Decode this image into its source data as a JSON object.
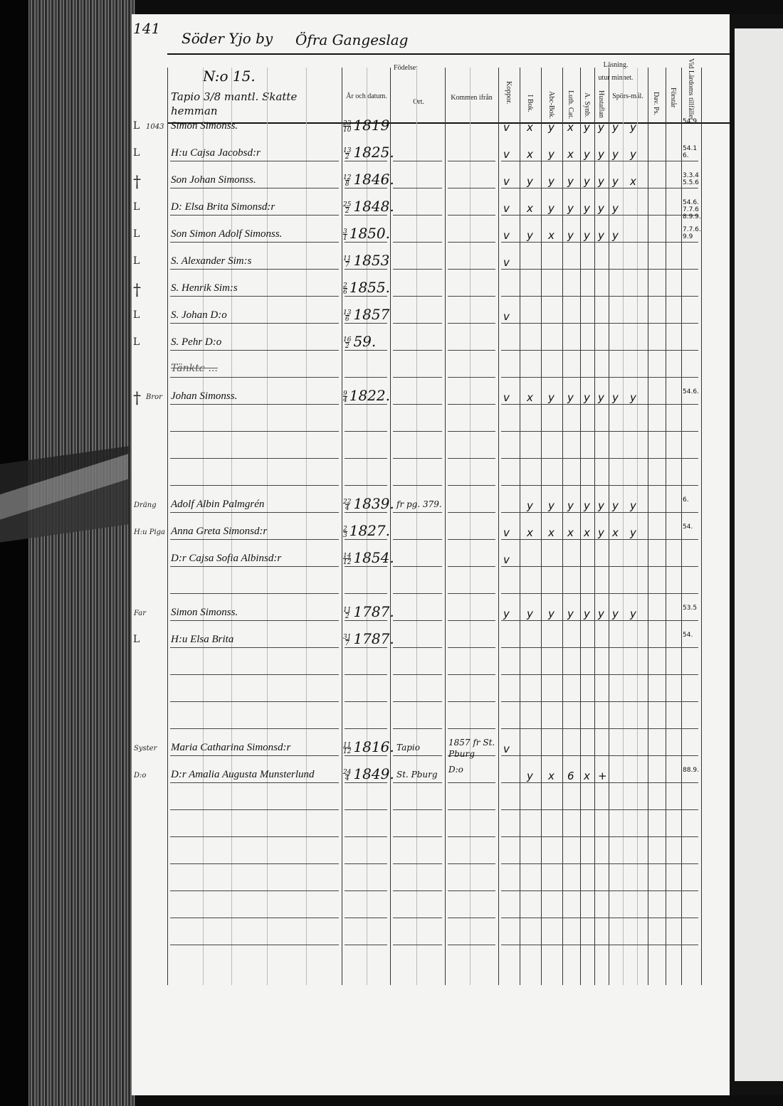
{
  "page": {
    "page_number": "141",
    "village": "Söder Yjo by",
    "parish_area": "Öfra Gangeslag",
    "household_number": "N:o 15.",
    "farm": "Tapio 3/8 mantl. Skatte hemman"
  },
  "columns": {
    "fodelse": "Födelse:",
    "ar_datum": "År och datum.",
    "ort": "Ort.",
    "kommen": "Kommen ifrån",
    "kopparr": "Koppor.",
    "lasning": "Läsning.",
    "utur_minnet": "utur minnet.",
    "i_bok": "I Bok.",
    "abc_bok": "Abc-Bok.",
    "luth_cat": "Luth. Cat.",
    "a_synb": "A. Synb.",
    "hustaflan": "Hustaflan",
    "sporsmal": "Spörs-mål.",
    "dav_ps": "Dav. Ps.",
    "forstar": "Förstår",
    "lardom": "Vid Lärdoms tillfället"
  },
  "entries": [
    {
      "row": 0,
      "left": "L",
      "role": "1043",
      "name": "Simon Simonss.",
      "day": "23",
      "month": "10",
      "year": "1819",
      "ort": "",
      "kommen": "",
      "marks": [
        "v",
        "x",
        "y",
        "x",
        "y",
        "y",
        "y",
        "y"
      ],
      "note": "54.9."
    },
    {
      "row": 1,
      "left": "L",
      "role": "",
      "name": "H:u Cajsa Jacobsd:r",
      "day": "13",
      "month": "2",
      "year": "1825.",
      "ort": "",
      "kommen": "",
      "marks": [
        "v",
        "x",
        "y",
        "x",
        "y",
        "y",
        "y",
        "y"
      ],
      "note": "54.1 6."
    },
    {
      "row": 2,
      "left": "†",
      "role": "",
      "name": "Son Johan Simonss.",
      "day": "12",
      "month": "8",
      "year": "1846.",
      "ort": "",
      "kommen": "",
      "marks": [
        "v",
        "y",
        "y",
        "y",
        "y",
        "y",
        "y",
        "x"
      ],
      "note": "3.3.4 5.5.6"
    },
    {
      "row": 3,
      "left": "L",
      "role": "",
      "name": "D: Elsa Brita Simonsd:r",
      "day": "25",
      "month": "2",
      "year": "1848.",
      "ort": "",
      "kommen": "",
      "marks": [
        "v",
        "x",
        "y",
        "y",
        "y",
        "y",
        "y",
        ""
      ],
      "note": "54.6. 7.7.6 8.9.9."
    },
    {
      "row": 4,
      "left": "L",
      "role": "",
      "name": "Son Simon Adolf Simonss.",
      "day": "3",
      "month": "1",
      "year": "1850.",
      "ort": "",
      "kommen": "",
      "marks": [
        "v",
        "y",
        "x",
        "y",
        "y",
        "y",
        "y",
        ""
      ],
      "note": "7.7.6. 9.9"
    },
    {
      "row": 5,
      "left": "L",
      "role": "",
      "name": "S. Alexander Sim:s",
      "day": "11",
      "month": "7",
      "year": "1853",
      "ort": "",
      "kommen": "",
      "marks": [
        "v",
        "",
        "",
        "",
        "",
        "",
        "",
        ""
      ],
      "note": ""
    },
    {
      "row": 6,
      "left": "†",
      "role": "",
      "name": "S. Henrik Sim:s",
      "day": "2",
      "month": "6",
      "year": "1855.",
      "ort": "",
      "kommen": "",
      "marks": [
        "",
        "",
        "",
        "",
        "",
        "",
        "",
        ""
      ],
      "note": ""
    },
    {
      "row": 7,
      "left": "L",
      "role": "",
      "name": "S. Johan D:o",
      "day": "13",
      "month": "6",
      "year": "1857",
      "ort": "",
      "kommen": "",
      "marks": [
        "v",
        "",
        "",
        "",
        "",
        "",
        "",
        ""
      ],
      "note": ""
    },
    {
      "row": 8,
      "left": "L",
      "role": "",
      "name": "S. Pehr D:o",
      "day": "16",
      "month": "2",
      "year": "59.",
      "ort": "",
      "kommen": "",
      "marks": [
        "",
        "",
        "",
        "",
        "",
        "",
        "",
        ""
      ],
      "note": ""
    },
    {
      "row": 10,
      "left": "†",
      "role": "Bror",
      "name": "Johan Simonss.",
      "day": "9",
      "month": "4",
      "year": "1822.",
      "ort": "",
      "kommen": "",
      "marks": [
        "v",
        "x",
        "y",
        "y",
        "y",
        "y",
        "y",
        "y"
      ],
      "note": "54.6."
    },
    {
      "row": 14,
      "left": "",
      "role": "Dräng",
      "name": "Adolf Albin Palmgrén",
      "day": "22",
      "month": "4",
      "year": "1839.",
      "ort": "fr pg. 379.",
      "kommen": "",
      "marks": [
        "",
        "y",
        "y",
        "y",
        "y",
        "y",
        "y",
        "y"
      ],
      "note": "6."
    },
    {
      "row": 15,
      "left": "",
      "role": "H:u Piga",
      "name": "Anna Greta Simonsd:r",
      "day": "2",
      "month": "3",
      "year": "1827.",
      "ort": "",
      "kommen": "",
      "marks": [
        "v",
        "x",
        "x",
        "x",
        "x",
        "y",
        "x",
        "y"
      ],
      "note": "54."
    },
    {
      "row": 16,
      "left": "",
      "role": "",
      "name": "D:r Cajsa Sofia Albinsd:r",
      "day": "14",
      "month": "12",
      "year": "1854.",
      "ort": "",
      "kommen": "",
      "marks": [
        "v",
        "",
        "",
        "",
        "",
        "",
        "",
        ""
      ],
      "note": ""
    },
    {
      "row": 18,
      "left": "",
      "role": "Far",
      "name": "Simon Simonss.",
      "day": "11",
      "month": "2",
      "year": "1787.",
      "ort": "",
      "kommen": "",
      "marks": [
        "y",
        "y",
        "y",
        "y",
        "y",
        "y",
        "y",
        "y"
      ],
      "note": "53.5"
    },
    {
      "row": 19,
      "left": "L",
      "role": "",
      "name": "H:u Elsa Brita",
      "day": "31",
      "month": "7",
      "year": "1787.",
      "ort": "",
      "kommen": "",
      "marks": [
        "",
        "",
        "",
        "",
        "",
        "",
        "",
        ""
      ],
      "note": "54."
    },
    {
      "row": 23,
      "left": "",
      "role": "Syster",
      "name": "Maria Catharina Simonsd:r",
      "day": "11",
      "month": "12",
      "year": "1816.",
      "ort": "Tapio",
      "kommen": "1857 fr St. Pburg",
      "marks": [
        "v",
        "",
        "",
        "",
        "",
        "",
        "",
        ""
      ],
      "note": ""
    },
    {
      "row": 24,
      "left": "",
      "role": "D:o",
      "name": "D:r Amalia Augusta Munsterlund",
      "day": "24",
      "month": "4",
      "year": "1849.",
      "ort": "St. Pburg",
      "kommen": "D:o",
      "marks": [
        "",
        "y",
        "x",
        "6",
        "x",
        "+",
        "",
        ""
      ],
      "note": "88.9."
    }
  ],
  "struck_row": {
    "row": 9,
    "text": "Tänkta ..."
  },
  "colors": {
    "paper": "#f4f4f2",
    "ink": "#111111",
    "book_edge": "#3c3c3c"
  }
}
